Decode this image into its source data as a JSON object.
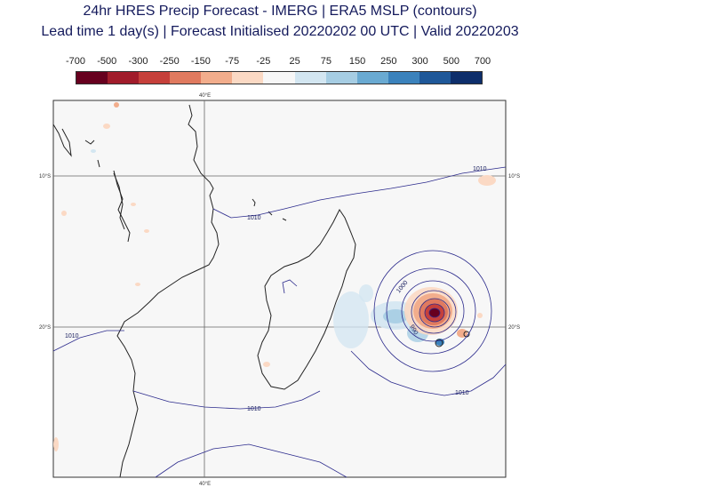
{
  "title": {
    "line1": "24hr HRES Precip Forecast - IMERG | ERA5 MSLP (contours)",
    "line2": "Lead time 1 day(s) | Forecast Initialised 20220202 00 UTC | Valid 20220203"
  },
  "colorbar": {
    "labels": [
      "-700",
      "-500",
      "-300",
      "-250",
      "-150",
      "-75",
      "-25",
      "25",
      "75",
      "150",
      "250",
      "300",
      "500",
      "700"
    ],
    "colors": [
      "#67001f",
      "#a11c2b",
      "#c6403b",
      "#e07a5f",
      "#f2ad8c",
      "#fbd9c4",
      "#f7f7f7",
      "#d3e6f1",
      "#a6cde3",
      "#6aaad2",
      "#3b82bc",
      "#1f5899",
      "#0d2e6b"
    ]
  },
  "axes": {
    "top_label": "40°E",
    "bottom_label": "40°E",
    "left_labels": [
      "10°S",
      "20°S"
    ],
    "right_labels": [
      "10°S",
      "20°S"
    ]
  },
  "contours": {
    "labels": [
      "1010",
      "1010",
      "1010",
      "1010",
      "1010",
      "1000",
      "990"
    ]
  }
}
